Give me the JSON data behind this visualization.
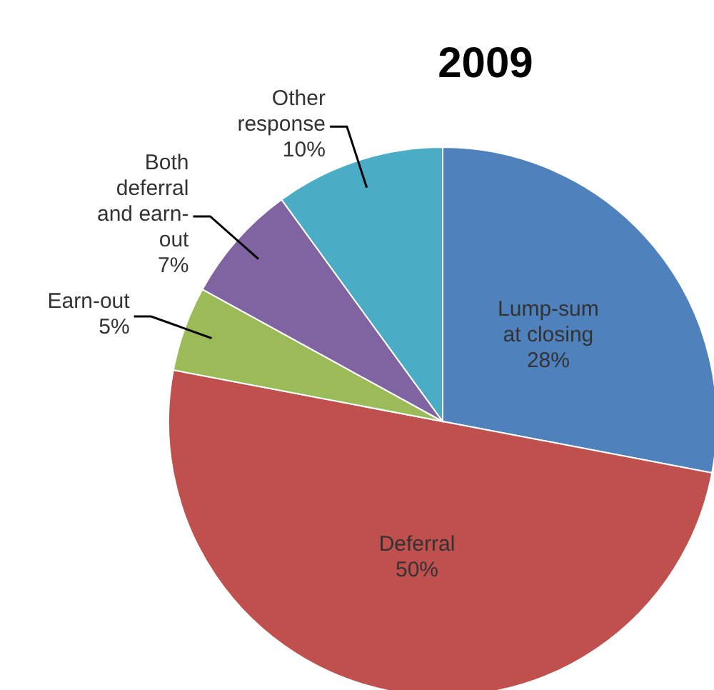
{
  "chart_data": {
    "type": "pie",
    "title": "2009",
    "categories": [
      "Lump-sum at closing",
      "Deferral",
      "Earn-out",
      "Both deferral and earn-out",
      "Other response"
    ],
    "values": [
      28,
      50,
      5,
      7,
      10
    ],
    "colors": [
      "#4f81bd",
      "#c0504d",
      "#9bbb59",
      "#8064a2",
      "#4bacc6"
    ],
    "value_labels": [
      "28%",
      "50%",
      "5%",
      "7%",
      "10%"
    ],
    "legend": false
  }
}
